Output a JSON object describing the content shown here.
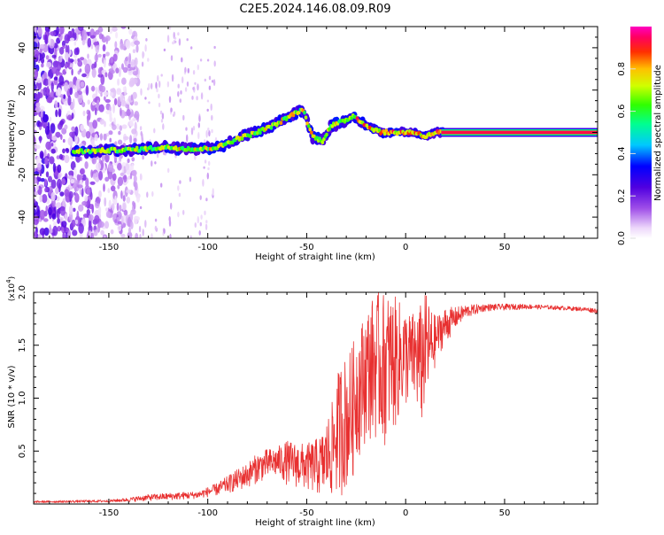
{
  "figure": {
    "title": "C2E5.2024.146.08.09.R09"
  },
  "chart_data": [
    {
      "type": "heatmap",
      "title": "",
      "xlabel": "Height of straight line (km)",
      "ylabel": "Frequency (Hz)",
      "xlim": [
        -188,
        97
      ],
      "ylim": [
        -50,
        50
      ],
      "x_ticks": [
        -150,
        -100,
        -50,
        0,
        50
      ],
      "x_tick_labels": [
        "-150",
        "-100",
        "-50",
        "0",
        "50"
      ],
      "y_ticks": [
        -40,
        -20,
        0,
        20,
        40
      ],
      "y_tick_labels": [
        "-40",
        "-20",
        "0",
        "20",
        "40"
      ],
      "colorbar": {
        "label": "Normalized spectral amplitude",
        "range": [
          0,
          1
        ],
        "ticks": [
          0.0,
          0.2,
          0.4,
          0.6,
          0.8
        ],
        "tick_labels": [
          "0.0",
          "0.2",
          "0.4",
          "0.6",
          "0.8"
        ]
      },
      "ridge": {
        "x": [
          -165,
          -150,
          -135,
          -120,
          -105,
          -95,
          -85,
          -75,
          -65,
          -58,
          -52,
          -47,
          -42,
          -38,
          -32,
          -26,
          -20,
          -12,
          -5,
          0,
          5,
          10,
          15,
          20,
          97
        ],
        "freq": [
          -9,
          -8.5,
          -8,
          -7,
          -8,
          -7,
          -3,
          0,
          4,
          8,
          11,
          -2,
          -4,
          3,
          5,
          8,
          3,
          0,
          0,
          0,
          0,
          -2,
          0,
          0,
          0
        ]
      },
      "noise_region_x": [
        -188,
        -135
      ]
    },
    {
      "type": "line",
      "title": "",
      "xlabel": "Height of straight line (km)",
      "ylabel": "SNR (10 * v/v)",
      "y_multiplier": "(x10",
      "y_multiplier_exp": "4",
      "y_multiplier_close": ")",
      "xlim": [
        -188,
        97
      ],
      "ylim": [
        0,
        20000
      ],
      "x_ticks": [
        -150,
        -100,
        -50,
        0,
        50
      ],
      "x_tick_labels": [
        "-150",
        "-100",
        "-50",
        "0",
        "50"
      ],
      "y_ticks": [
        5000,
        10000,
        15000,
        20000
      ],
      "y_tick_labels": [
        "0.5",
        "1.0",
        "1.5",
        "2.0"
      ],
      "series": [
        {
          "name": "SNR",
          "color": "#e83030",
          "envelope": {
            "x": [
              -188,
              -170,
              -150,
              -140,
              -130,
              -115,
              -105,
              -95,
              -85,
              -80,
              -75,
              -70,
              -65,
              -60,
              -55,
              -50,
              -45,
              -42,
              -40,
              -37,
              -35,
              -32,
              -30,
              -27,
              -25,
              -22,
              -20,
              -17,
              -15,
              -12,
              -10,
              -7,
              -5,
              -2,
              0,
              3,
              5,
              8,
              10,
              13,
              15,
              18,
              20,
              25,
              30,
              40,
              50,
              60,
              70,
              80,
              90,
              97
            ],
            "low": [
              100,
              120,
              150,
              200,
              300,
              400,
              500,
              800,
              1200,
              1500,
              2000,
              2300,
              2500,
              1800,
              1500,
              1200,
              800,
              500,
              500,
              500,
              600,
              800,
              1200,
              2000,
              4000,
              5000,
              6000,
              6000,
              6000,
              5500,
              5500,
              6500,
              7000,
              8500,
              9000,
              9500,
              9000,
              7000,
              9000,
              11000,
              13000,
              14500,
              15000,
              16500,
              17500,
              18200,
              18300,
              18400,
              18400,
              18300,
              18200,
              18000
            ],
            "high": [
              300,
              350,
              400,
              600,
              900,
              1100,
              1200,
              2000,
              3300,
              3900,
              4800,
              5200,
              5400,
              6000,
              5800,
              5700,
              6200,
              6800,
              8000,
              9700,
              12000,
              14000,
              14000,
              15000,
              16500,
              17500,
              18500,
              19500,
              20000,
              20000,
              20000,
              20000,
              19500,
              19000,
              18500,
              18000,
              18500,
              19000,
              20000,
              18500,
              17800,
              18200,
              18600,
              18600,
              18800,
              18900,
              18900,
              18900,
              18800,
              18700,
              18600,
              18500
            ]
          }
        }
      ]
    }
  ]
}
